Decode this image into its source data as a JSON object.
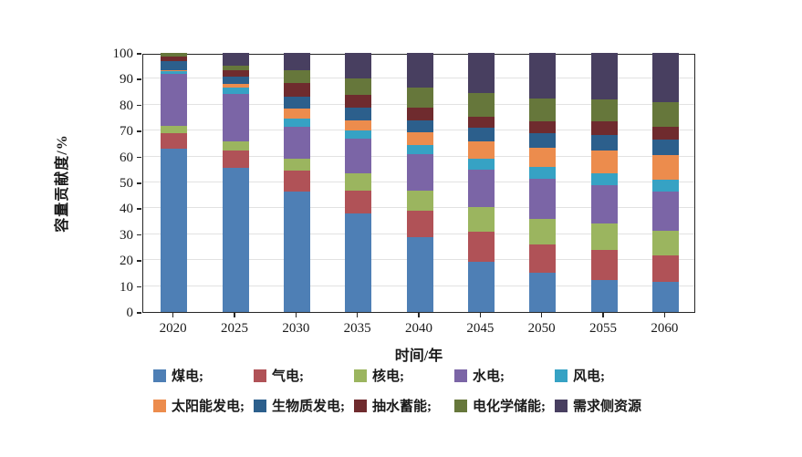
{
  "chart_data": {
    "type": "bar",
    "stacked": true,
    "title": "",
    "xlabel": "时间/年",
    "ylabel": "容量贡献度/%",
    "ylim": [
      0,
      100
    ],
    "y_ticks": [
      0,
      10,
      20,
      30,
      40,
      50,
      60,
      70,
      80,
      90,
      100
    ],
    "grid": "horizontal",
    "legend_position": "bottom",
    "categories": [
      "2020",
      "2025",
      "2030",
      "2035",
      "2040",
      "2045",
      "2050",
      "2055",
      "2060"
    ],
    "series": [
      {
        "name": "煤电",
        "legend_label": "煤电;",
        "color": "#4E7FB5",
        "values": [
          63,
          55.5,
          46.5,
          38,
          29,
          19.5,
          15,
          12.5,
          11.5
        ]
      },
      {
        "name": "气电",
        "legend_label": "气电;",
        "color": "#B05257",
        "values": [
          6,
          7,
          8,
          9,
          10,
          11.5,
          11,
          11.5,
          10.5
        ]
      },
      {
        "name": "核电",
        "legend_label": "核电;",
        "color": "#9BB55F",
        "values": [
          3,
          3.5,
          4.5,
          6.5,
          8,
          9.5,
          10,
          10,
          9.5
        ]
      },
      {
        "name": "水电",
        "legend_label": "水电;",
        "color": "#7B65A6",
        "values": [
          20,
          18,
          12.5,
          13.5,
          14,
          14.5,
          15.5,
          15,
          15
        ]
      },
      {
        "name": "风电",
        "legend_label": "风电;",
        "color": "#36A2C4",
        "values": [
          1,
          2.5,
          3,
          3,
          3.5,
          4,
          4.5,
          4.5,
          4.5
        ]
      },
      {
        "name": "太阳能发电",
        "legend_label": "太阳能发电;",
        "color": "#EC8C4D",
        "values": [
          0.5,
          1.5,
          4,
          4,
          5,
          7,
          7.5,
          9,
          9.5
        ]
      },
      {
        "name": "生物质发电",
        "legend_label": "生物质发电;",
        "color": "#2C5F8C",
        "values": [
          3.5,
          3,
          4.5,
          5,
          4.5,
          5,
          5.5,
          6,
          6
        ]
      },
      {
        "name": "抽水蓄能",
        "legend_label": "抽水蓄能;",
        "color": "#6F2B2E",
        "values": [
          1.5,
          2.5,
          5.5,
          5,
          5,
          4.5,
          4.5,
          5,
          5
        ]
      },
      {
        "name": "电化学储能",
        "legend_label": "电化学储能;",
        "color": "#66773B",
        "values": [
          1.5,
          1.5,
          5,
          6,
          7.5,
          9,
          9,
          8.5,
          9.5
        ]
      },
      {
        "name": "需求侧资源",
        "legend_label": "需求侧资源",
        "color": "#483F60",
        "values": [
          0,
          5,
          6.5,
          10,
          13.5,
          15.5,
          17.5,
          18,
          19
        ]
      }
    ]
  },
  "colors": {
    "axis": "#262626",
    "gridline": "#e2e2e2",
    "text": "#1a1a1a",
    "background": "#ffffff"
  }
}
